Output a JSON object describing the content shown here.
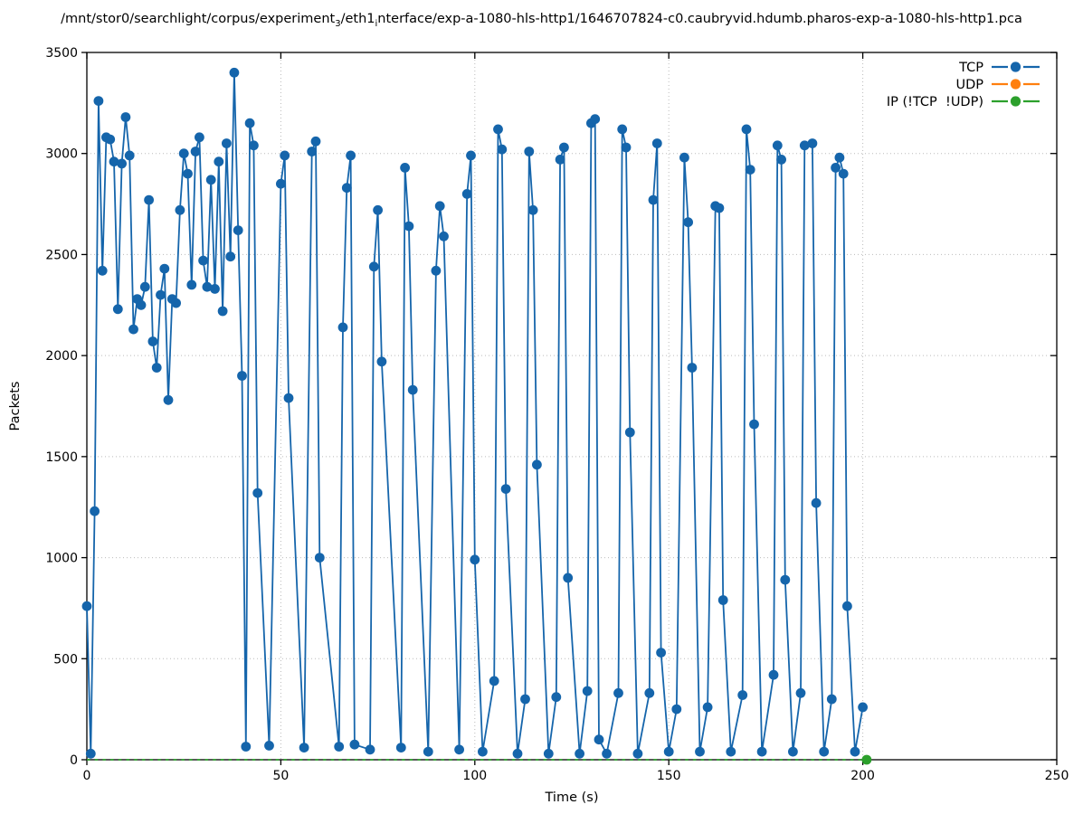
{
  "chart_data": {
    "type": "line",
    "title_parts": [
      {
        "t": "/mnt/stor0/searchlight/corpus/experiment"
      },
      {
        "sub": "3"
      },
      {
        "t": "/eth1"
      },
      {
        "sub": "i"
      },
      {
        "t": "nterface/exp-a-1080-hls-http1/1646707824-c0.caubryvid.hdumb.pharos-exp-a-1080-hls-http1.pca"
      }
    ],
    "xlabel": "Time (s)",
    "ylabel": "Packets",
    "xlim": [
      0,
      250
    ],
    "ylim": [
      0,
      3500
    ],
    "xticks": [
      0,
      50,
      100,
      150,
      200,
      250
    ],
    "yticks": [
      0,
      500,
      1000,
      1500,
      2000,
      2500,
      3000,
      3500
    ],
    "grid": {
      "style": "dotted",
      "color": "#bbbbbb"
    },
    "axis_color": "#000000",
    "legend": {
      "position": "top-right-inside"
    },
    "series": [
      {
        "name": "TCP",
        "color": "#1565ab",
        "marker": "circle",
        "line": "solid",
        "points": [
          [
            0,
            760
          ],
          [
            1,
            30
          ],
          [
            2,
            1230
          ],
          [
            3,
            3260
          ],
          [
            4,
            2420
          ],
          [
            5,
            3080
          ],
          [
            6,
            3070
          ],
          [
            7,
            2960
          ],
          [
            8,
            2230
          ],
          [
            9,
            2950
          ],
          [
            10,
            3180
          ],
          [
            11,
            2990
          ],
          [
            12,
            2130
          ],
          [
            13,
            2280
          ],
          [
            14,
            2250
          ],
          [
            15,
            2340
          ],
          [
            16,
            2770
          ],
          [
            17,
            2070
          ],
          [
            18,
            1940
          ],
          [
            19,
            2300
          ],
          [
            20,
            2430
          ],
          [
            21,
            1780
          ],
          [
            22,
            2280
          ],
          [
            23,
            2260
          ],
          [
            24,
            2720
          ],
          [
            25,
            3000
          ],
          [
            26,
            2900
          ],
          [
            27,
            2350
          ],
          [
            28,
            3010
          ],
          [
            29,
            3080
          ],
          [
            30,
            2470
          ],
          [
            31,
            2340
          ],
          [
            32,
            2870
          ],
          [
            33,
            2330
          ],
          [
            34,
            2960
          ],
          [
            35,
            2220
          ],
          [
            36,
            3050
          ],
          [
            37,
            2490
          ],
          [
            38,
            3400
          ],
          [
            39,
            2620
          ],
          [
            40,
            1900
          ],
          [
            41,
            65
          ],
          [
            42,
            3150
          ],
          [
            43,
            3040
          ],
          [
            44,
            1320
          ],
          [
            47,
            70
          ],
          [
            50,
            2850
          ],
          [
            51,
            2990
          ],
          [
            52,
            1790
          ],
          [
            56,
            60
          ],
          [
            58,
            3010
          ],
          [
            59,
            3060
          ],
          [
            60,
            1000
          ],
          [
            65,
            65
          ],
          [
            66,
            2140
          ],
          [
            67,
            2830
          ],
          [
            68,
            2990
          ],
          [
            69,
            75
          ],
          [
            73,
            50
          ],
          [
            74,
            2440
          ],
          [
            75,
            2720
          ],
          [
            76,
            1970
          ],
          [
            81,
            60
          ],
          [
            82,
            2930
          ],
          [
            83,
            2640
          ],
          [
            84,
            1830
          ],
          [
            88,
            40
          ],
          [
            90,
            2420
          ],
          [
            91,
            2740
          ],
          [
            92,
            2590
          ],
          [
            96,
            50
          ],
          [
            98,
            2800
          ],
          [
            99,
            2990
          ],
          [
            100,
            990
          ],
          [
            102,
            40
          ],
          [
            105,
            390
          ],
          [
            106,
            3120
          ],
          [
            107,
            3020
          ],
          [
            108,
            1340
          ],
          [
            111,
            30
          ],
          [
            113,
            300
          ],
          [
            114,
            3010
          ],
          [
            115,
            2720
          ],
          [
            116,
            1460
          ],
          [
            119,
            30
          ],
          [
            121,
            310
          ],
          [
            122,
            2970
          ],
          [
            123,
            3030
          ],
          [
            124,
            900
          ],
          [
            127,
            30
          ],
          [
            129,
            340
          ],
          [
            130,
            3150
          ],
          [
            131,
            3170
          ],
          [
            132,
            100
          ],
          [
            134,
            30
          ],
          [
            137,
            330
          ],
          [
            138,
            3120
          ],
          [
            139,
            3030
          ],
          [
            140,
            1620
          ],
          [
            142,
            30
          ],
          [
            145,
            330
          ],
          [
            146,
            2770
          ],
          [
            147,
            3050
          ],
          [
            148,
            530
          ],
          [
            150,
            40
          ],
          [
            152,
            250
          ],
          [
            154,
            2980
          ],
          [
            155,
            2660
          ],
          [
            156,
            1940
          ],
          [
            158,
            40
          ],
          [
            160,
            260
          ],
          [
            162,
            2740
          ],
          [
            163,
            2730
          ],
          [
            164,
            790
          ],
          [
            166,
            40
          ],
          [
            169,
            320
          ],
          [
            170,
            3120
          ],
          [
            171,
            2920
          ],
          [
            172,
            1660
          ],
          [
            174,
            40
          ],
          [
            177,
            420
          ],
          [
            178,
            3040
          ],
          [
            179,
            2970
          ],
          [
            180,
            890
          ],
          [
            182,
            40
          ],
          [
            184,
            330
          ],
          [
            185,
            3040
          ],
          [
            187,
            3050
          ],
          [
            188,
            1270
          ],
          [
            190,
            40
          ],
          [
            192,
            300
          ],
          [
            193,
            2930
          ],
          [
            194,
            2980
          ],
          [
            195,
            2900
          ],
          [
            196,
            760
          ],
          [
            198,
            40
          ],
          [
            200,
            260
          ]
        ]
      },
      {
        "name": "UDP",
        "color": "#ff7f0e",
        "marker": "circle",
        "line": "dashed",
        "points": []
      },
      {
        "name": "IP (!TCP  !UDP)",
        "color": "#2ca02c",
        "marker": "circle",
        "line": "dashed",
        "points": [
          [
            0,
            0
          ],
          [
            201,
            0
          ]
        ],
        "marker_on_last_point_only": true
      }
    ]
  }
}
